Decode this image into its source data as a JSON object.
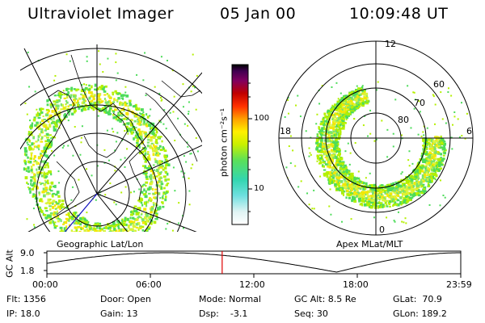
{
  "header": {
    "instrument": "Ultraviolet Imager",
    "date": "05 Jan 00",
    "time": "10:09:48 UT"
  },
  "colorbar": {
    "unit_label": "photon cm⁻²s⁻¹",
    "ticks": [
      "100",
      "10"
    ]
  },
  "left_panel": {
    "caption": "Geographic Lat/Lon"
  },
  "right_panel": {
    "caption": "Apex MLat/MLT",
    "mlt_labels": [
      "12",
      "18",
      "6",
      "0"
    ],
    "mlat_labels": [
      "60",
      "70",
      "80"
    ]
  },
  "timeline": {
    "ylabel": "GC Alt",
    "yticks": [
      "9.0",
      "1.8"
    ],
    "xticks": [
      "00:00",
      "06:00",
      "12:00",
      "18:00",
      "23:59"
    ],
    "current_time_fraction": 0.4235,
    "marker_color": "#e00000"
  },
  "status": {
    "row1": {
      "flt": "Flt: 1356",
      "door": "Door: Open",
      "mode": "Mode: Normal",
      "gcalt": "GC Alt: 8.5 Re",
      "glat": "GLat:  70.9"
    },
    "row2": {
      "ip": "IP: 18.0",
      "gain": "Gain: 13",
      "dsp": "Dsp:    -3.1",
      "seq": "Seq: 30",
      "glon": "GLon: 189.2"
    }
  },
  "colors": {
    "aurora_low": "#4ddc5a",
    "aurora_mid": "#b4f000",
    "aurora_high": "#f5e600"
  }
}
